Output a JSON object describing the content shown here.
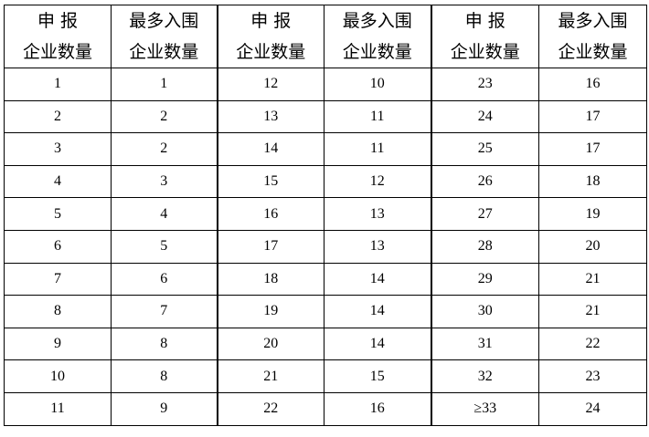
{
  "header": {
    "col_a_line1": "申 报",
    "col_a_line2": "企业数量",
    "col_b_line1": "最多入围",
    "col_b_line2": "企业数量"
  },
  "rows": [
    [
      "1",
      "1",
      "12",
      "10",
      "23",
      "16"
    ],
    [
      "2",
      "2",
      "13",
      "11",
      "24",
      "17"
    ],
    [
      "3",
      "2",
      "14",
      "11",
      "25",
      "17"
    ],
    [
      "4",
      "3",
      "15",
      "12",
      "26",
      "18"
    ],
    [
      "5",
      "4",
      "16",
      "13",
      "27",
      "19"
    ],
    [
      "6",
      "5",
      "17",
      "13",
      "28",
      "20"
    ],
    [
      "7",
      "6",
      "18",
      "14",
      "29",
      "21"
    ],
    [
      "8",
      "7",
      "19",
      "14",
      "30",
      "21"
    ],
    [
      "9",
      "8",
      "20",
      "14",
      "31",
      "22"
    ],
    [
      "10",
      "8",
      "21",
      "15",
      "32",
      "23"
    ],
    [
      "11",
      "9",
      "22",
      "16",
      "≥33",
      "24"
    ]
  ]
}
